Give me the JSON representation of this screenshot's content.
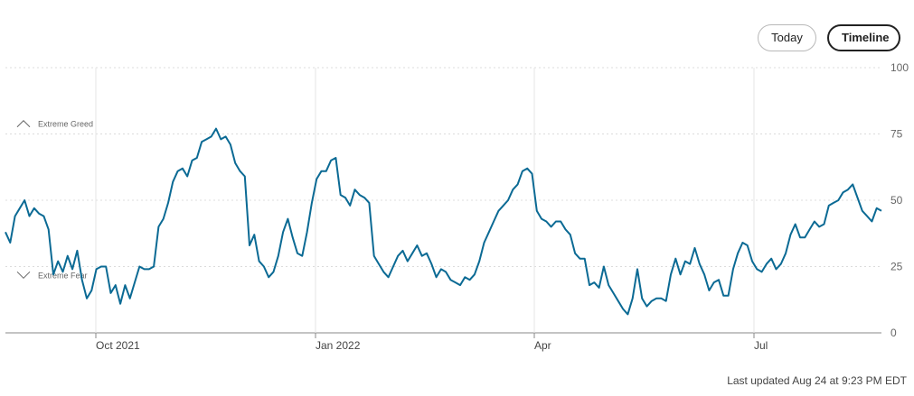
{
  "controls": {
    "today_label": "Today",
    "timeline_label": "Timeline"
  },
  "footer": {
    "last_updated": "Last updated Aug 24 at 9:23 PM EDT"
  },
  "chart_data": {
    "type": "line",
    "series": [
      {
        "color": "#0b6a94",
        "values": [
          38,
          34,
          44,
          47,
          50,
          44,
          47,
          45,
          44,
          39,
          22,
          27,
          23,
          29,
          24,
          31,
          20,
          13,
          16,
          24,
          25,
          25,
          15,
          18,
          11,
          18,
          13,
          19,
          25,
          24,
          24,
          25,
          40,
          43,
          49,
          57,
          61,
          62,
          59,
          65,
          66,
          72,
          73,
          74,
          77,
          73,
          74,
          71,
          64,
          61,
          59,
          33,
          37,
          27,
          25,
          21,
          23,
          29,
          38,
          43,
          36,
          30,
          29,
          38,
          49,
          58,
          61,
          61,
          65,
          66,
          52,
          51,
          48,
          54,
          52,
          51,
          49,
          29,
          26,
          23,
          21,
          25,
          29,
          31,
          27,
          30,
          33,
          29,
          30,
          26,
          21,
          24,
          23,
          20,
          19,
          18,
          21,
          20,
          22,
          27,
          34,
          38,
          42,
          46,
          48,
          50,
          54,
          56,
          61,
          62,
          60,
          46,
          43,
          42,
          40,
          42,
          42,
          39,
          37,
          30,
          28,
          28,
          18,
          19,
          17,
          25,
          18,
          15,
          12,
          9,
          7,
          13,
          24,
          13,
          10,
          12,
          13,
          13,
          12,
          22,
          28,
          22,
          27,
          26,
          32,
          26,
          22,
          16,
          19,
          20,
          14,
          14,
          24,
          30,
          34,
          33,
          27,
          24,
          23,
          26,
          28,
          24,
          26,
          30,
          37,
          41,
          36,
          36,
          39,
          42,
          40,
          41,
          48,
          49,
          50,
          53,
          54,
          56,
          51,
          46,
          44,
          42,
          47,
          46
        ]
      }
    ],
    "x_labels": [
      "Oct 2021",
      "Jan 2022",
      "Apr",
      "Jul"
    ],
    "y_ticks": [
      0,
      25,
      50,
      75,
      100
    ],
    "ylim": [
      0,
      100
    ],
    "grid": true,
    "annotations": [
      {
        "label": "Extreme Greed",
        "icon": "chevron-up-icon",
        "value": 79
      },
      {
        "label": "Extreme Fear",
        "icon": "chevron-down-icon",
        "value": 22
      }
    ]
  }
}
